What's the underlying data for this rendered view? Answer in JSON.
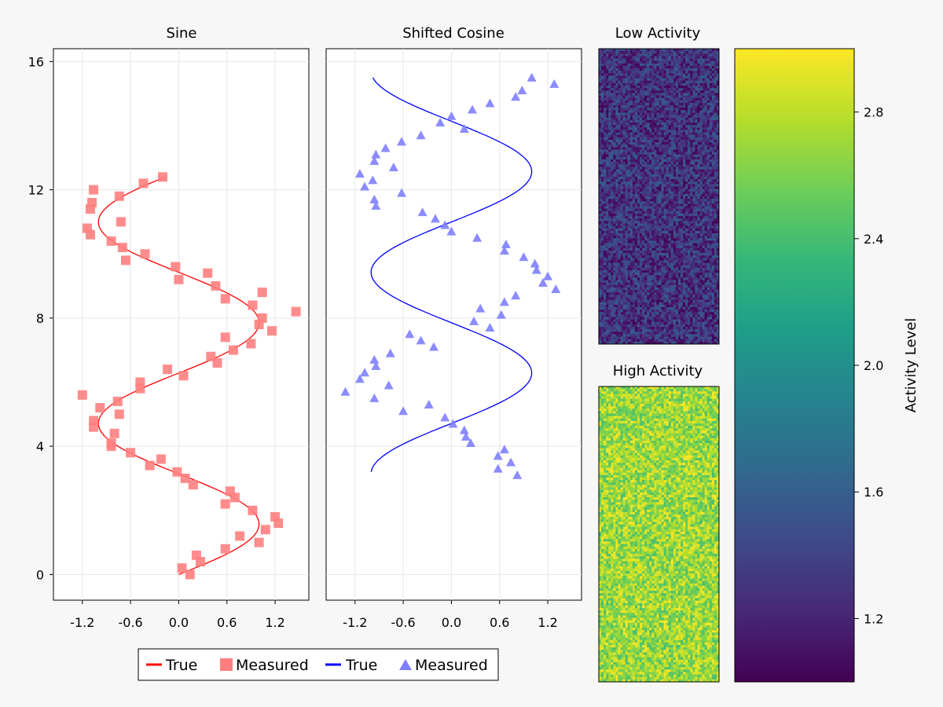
{
  "chart_data": [
    {
      "type": "scatter",
      "title": "Sine",
      "xlim": [
        -1.56,
        1.62
      ],
      "ylim": [
        -0.8,
        16.4
      ],
      "xticks": [
        -1.2,
        -0.6,
        0.0,
        0.6,
        1.2
      ],
      "xtick_labels": [
        "-1.2",
        "-0.6",
        "0.0",
        "0.6",
        "1.2"
      ],
      "yticks": [
        0,
        4,
        8,
        12,
        16
      ],
      "ytick_labels": [
        "0",
        "4",
        "8",
        "12",
        "16"
      ],
      "series": [
        {
          "name": "True",
          "kind": "line",
          "color": "#ff0000",
          "curve": "sin",
          "y_range": [
            0,
            12.4
          ]
        },
        {
          "name": "Measured",
          "kind": "markers",
          "marker": "square",
          "color": "#ff7f7f",
          "points": [
            [
              0.14,
              0.0
            ],
            [
              0.04,
              0.2
            ],
            [
              0.27,
              0.4
            ],
            [
              0.22,
              0.6
            ],
            [
              0.58,
              0.8
            ],
            [
              1.0,
              1.0
            ],
            [
              0.76,
              1.2
            ],
            [
              1.08,
              1.4
            ],
            [
              1.24,
              1.6
            ],
            [
              1.2,
              1.8
            ],
            [
              0.92,
              2.0
            ],
            [
              0.58,
              2.2
            ],
            [
              0.7,
              2.4
            ],
            [
              0.64,
              2.6
            ],
            [
              0.18,
              2.8
            ],
            [
              0.08,
              3.0
            ],
            [
              -0.02,
              3.2
            ],
            [
              -0.36,
              3.4
            ],
            [
              -0.22,
              3.6
            ],
            [
              -0.6,
              3.8
            ],
            [
              -0.84,
              4.0
            ],
            [
              -0.84,
              4.1
            ],
            [
              -0.8,
              4.4
            ],
            [
              -1.06,
              4.6
            ],
            [
              -1.06,
              4.8
            ],
            [
              -0.74,
              5.0
            ],
            [
              -0.98,
              5.2
            ],
            [
              -0.76,
              5.4
            ],
            [
              -1.2,
              5.6
            ],
            [
              -0.48,
              5.8
            ],
            [
              -0.48,
              6.0
            ],
            [
              0.06,
              6.2
            ],
            [
              -0.14,
              6.4
            ],
            [
              0.48,
              6.6
            ],
            [
              0.4,
              6.8
            ],
            [
              0.68,
              7.0
            ],
            [
              0.9,
              7.2
            ],
            [
              0.58,
              7.4
            ],
            [
              1.16,
              7.6
            ],
            [
              1.0,
              7.8
            ],
            [
              1.04,
              8.0
            ],
            [
              1.46,
              8.2
            ],
            [
              0.92,
              8.4
            ],
            [
              0.58,
              8.6
            ],
            [
              1.04,
              8.8
            ],
            [
              0.46,
              9.0
            ],
            [
              0.36,
              9.4
            ],
            [
              0.0,
              9.2
            ],
            [
              -0.04,
              9.6
            ],
            [
              -0.66,
              9.8
            ],
            [
              -0.42,
              10.0
            ],
            [
              -0.7,
              10.2
            ],
            [
              -0.84,
              10.4
            ],
            [
              -1.1,
              10.6
            ],
            [
              -1.14,
              10.8
            ],
            [
              -0.72,
              11.0
            ],
            [
              -1.1,
              11.4
            ],
            [
              -1.08,
              11.6
            ],
            [
              -0.74,
              11.8
            ],
            [
              -1.06,
              12.0
            ],
            [
              -0.44,
              12.2
            ],
            [
              -0.2,
              12.4
            ]
          ]
        }
      ]
    },
    {
      "type": "scatter",
      "title": "Shifted Cosine",
      "xlim": [
        -1.56,
        1.62
      ],
      "ylim": [
        -0.8,
        16.4
      ],
      "xticks": [
        -1.2,
        -0.6,
        0.0,
        0.6,
        1.2
      ],
      "xtick_labels": [
        "-1.2",
        "-0.6",
        "0.0",
        "0.6",
        "1.2"
      ],
      "series": [
        {
          "name": "True",
          "kind": "line",
          "color": "#0000ff",
          "curve": "cos",
          "y_range": [
            3.2,
            15.5
          ]
        },
        {
          "name": "Measured",
          "kind": "markers",
          "marker": "triangle",
          "color": "#7f7fff",
          "points": [
            [
              0.82,
              3.1
            ],
            [
              0.58,
              3.3
            ],
            [
              0.74,
              3.5
            ],
            [
              0.58,
              3.7
            ],
            [
              0.66,
              3.9
            ],
            [
              0.24,
              4.1
            ],
            [
              0.18,
              4.3
            ],
            [
              0.16,
              4.5
            ],
            [
              0.02,
              4.7
            ],
            [
              -0.08,
              4.9
            ],
            [
              -0.6,
              5.1
            ],
            [
              -0.28,
              5.3
            ],
            [
              -0.96,
              5.5
            ],
            [
              -1.32,
              5.7
            ],
            [
              -0.78,
              5.9
            ],
            [
              -1.14,
              6.1
            ],
            [
              -1.08,
              6.3
            ],
            [
              -0.94,
              6.5
            ],
            [
              -0.96,
              6.7
            ],
            [
              -0.76,
              6.9
            ],
            [
              -0.22,
              7.1
            ],
            [
              -0.38,
              7.3
            ],
            [
              -0.52,
              7.5
            ],
            [
              0.48,
              7.7
            ],
            [
              0.28,
              7.9
            ],
            [
              0.62,
              8.1
            ],
            [
              0.36,
              8.3
            ],
            [
              0.66,
              8.5
            ],
            [
              0.8,
              8.7
            ],
            [
              1.3,
              8.9
            ],
            [
              1.14,
              9.1
            ],
            [
              1.2,
              9.3
            ],
            [
              1.06,
              9.5
            ],
            [
              1.04,
              9.7
            ],
            [
              0.9,
              9.9
            ],
            [
              0.66,
              10.1
            ],
            [
              0.68,
              10.3
            ],
            [
              0.32,
              10.5
            ],
            [
              0.0,
              10.7
            ],
            [
              -0.08,
              10.9
            ],
            [
              -0.2,
              11.1
            ],
            [
              -0.36,
              11.3
            ],
            [
              -0.94,
              11.5
            ],
            [
              -0.96,
              11.7
            ],
            [
              -0.62,
              11.9
            ],
            [
              -1.08,
              12.1
            ],
            [
              -0.98,
              12.3
            ],
            [
              -1.14,
              12.5
            ],
            [
              -0.72,
              12.7
            ],
            [
              -0.96,
              12.9
            ],
            [
              -0.94,
              13.1
            ],
            [
              -0.82,
              13.3
            ],
            [
              -0.62,
              13.5
            ],
            [
              -0.38,
              13.7
            ],
            [
              0.16,
              13.9
            ],
            [
              -0.14,
              14.1
            ],
            [
              0.0,
              14.3
            ],
            [
              0.26,
              14.5
            ],
            [
              0.48,
              14.7
            ],
            [
              0.8,
              14.9
            ],
            [
              0.88,
              15.1
            ],
            [
              1.28,
              15.3
            ],
            [
              1.0,
              15.5
            ]
          ]
        }
      ]
    },
    {
      "type": "heatmap",
      "title": "Low Activity",
      "value_range": [
        1.0,
        1.6
      ],
      "colormap": "viridis"
    },
    {
      "type": "heatmap",
      "title": "High Activity",
      "value_range": [
        2.4,
        3.0
      ],
      "colormap": "viridis"
    },
    {
      "type": "colorbar",
      "label": "Activity Level",
      "range": [
        1.0,
        3.0
      ],
      "ticks": [
        1.2,
        1.6,
        2.0,
        2.4,
        2.8
      ],
      "tick_labels": [
        "1.2",
        "1.6",
        "2.0",
        "2.4",
        "2.8"
      ],
      "colormap": "viridis"
    }
  ],
  "legend": {
    "items": [
      {
        "label": "True",
        "kind": "line",
        "color": "#ff0000"
      },
      {
        "label": "Measured",
        "kind": "square",
        "color": "#ff7f7f"
      },
      {
        "label": "True",
        "kind": "line",
        "color": "#0000ff"
      },
      {
        "label": "Measured",
        "kind": "triangle",
        "color": "#7f7fff"
      }
    ]
  }
}
